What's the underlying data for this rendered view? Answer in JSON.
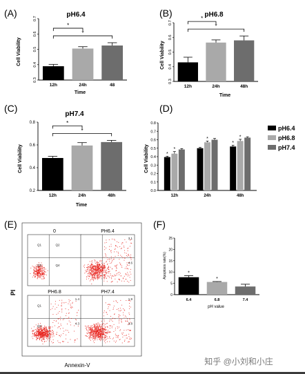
{
  "panels": {
    "A": {
      "letter": "(A)",
      "title": "pH6.4",
      "ylabel": "Cell Viability",
      "xlabel": "Time"
    },
    "B": {
      "letter": "(B)",
      "title": "pH6.8",
      "ylabel": "Cell Viability",
      "xlabel": "Time"
    },
    "C": {
      "letter": "(C)",
      "title": "pH7.4",
      "ylabel": "Cell Viability",
      "xlabel": "Time"
    },
    "D": {
      "letter": "(D)",
      "ylabel": "Cell Viability"
    },
    "E": {
      "letter": "(E)",
      "ylabel": "PI",
      "xlabel": "Annexin-V",
      "plots": [
        {
          "title": "0",
          "q1": "Q1",
          "q2": "Q2",
          "q3": "Q3",
          "q4": "Q4",
          "ur": "",
          "lr": ""
        },
        {
          "title": "PH6.4",
          "q1": "",
          "q2": "",
          "q3": "",
          "q4": "",
          "ur": "3.1",
          "lr": "4.6"
        },
        {
          "title": "PH6.8",
          "q1": "Q1",
          "q2": "",
          "q3": "Q3",
          "q4": "",
          "ur": "1.4",
          "lr": "4.3"
        },
        {
          "title": "PH7.4",
          "q1": "",
          "q2": "",
          "q3": "",
          "q4": "",
          "ur": "1.9",
          "lr": "3.8"
        }
      ]
    },
    "F": {
      "letter": "(F)",
      "ylabel": "Apoptosis rate(%)",
      "xlabel": "pH value"
    }
  },
  "watermark": "知乎 @小刘和小庄",
  "colors": {
    "black": "#000000",
    "gray_light": "#a9a9a9",
    "gray_dark": "#6d6d6d",
    "flow_red": "#e8251f"
  },
  "chart_data": [
    {
      "id": "A",
      "type": "bar",
      "title": "pH6.4",
      "xlabel": "Time",
      "ylabel": "Cell Viability",
      "categories": [
        "12h",
        "24h",
        "48"
      ],
      "values": [
        0.39,
        0.505,
        0.525
      ],
      "errors": [
        0.012,
        0.012,
        0.018
      ],
      "colors": [
        "#000000",
        "#a9a9a9",
        "#6d6d6d"
      ],
      "ylim": [
        0.3,
        0.7
      ],
      "yticks": [
        "0.3",
        "0.4",
        "0.5",
        "0.6",
        "0.7"
      ],
      "significance": [
        {
          "from": 0,
          "to": 1,
          "label": "*"
        },
        {
          "from": 0,
          "to": 2,
          "label": "*"
        }
      ]
    },
    {
      "id": "B",
      "type": "bar",
      "title": "pH6.8",
      "xlabel": "Time",
      "ylabel": "Cell Viability",
      "categories": [
        "12h",
        "24h",
        "48h"
      ],
      "values": [
        0.43,
        0.565,
        0.58
      ],
      "errors": [
        0.035,
        0.018,
        0.03
      ],
      "colors": [
        "#000000",
        "#a9a9a9",
        "#6d6d6d"
      ],
      "ylim": [
        0.3,
        0.7
      ],
      "yticks": [
        "0.3",
        "0.4",
        "0.5",
        "0.6",
        "0.7"
      ],
      "significance": [
        {
          "from": 0,
          "to": 1,
          "label": "*"
        },
        {
          "from": 0,
          "to": 2,
          "label": "*"
        }
      ]
    },
    {
      "id": "C",
      "type": "bar",
      "title": "pH7.4",
      "xlabel": "Time",
      "ylabel": "Cell Viability",
      "categories": [
        "12h",
        "24h",
        "48h"
      ],
      "values": [
        0.485,
        0.595,
        0.625
      ],
      "errors": [
        0.015,
        0.025,
        0.015
      ],
      "colors": [
        "#000000",
        "#a9a9a9",
        "#6d6d6d"
      ],
      "ylim": [
        0.2,
        0.8
      ],
      "yticks": [
        "0.2",
        "0.4",
        "0.6",
        "0.8"
      ],
      "significance": [
        {
          "from": 0,
          "to": 1,
          "label": "*"
        },
        {
          "from": 0,
          "to": 2,
          "label": "*"
        }
      ]
    },
    {
      "id": "D",
      "type": "bar",
      "ylabel": "Cell Viability",
      "categories": [
        "12h",
        "24h",
        "48h"
      ],
      "ylim": [
        0.0,
        0.8
      ],
      "yticks": [
        "0.0",
        "0.1",
        "0.2",
        "0.3",
        "0.4",
        "0.5",
        "0.6",
        "0.7",
        "0.8"
      ],
      "series": [
        {
          "name": "pH6.4",
          "color": "#000000",
          "values": [
            0.395,
            0.5,
            0.52
          ],
          "errors": [
            0.01,
            0.01,
            0.015
          ],
          "stars": [
            "*",
            "",
            "*"
          ]
        },
        {
          "name": "pH6.8",
          "color": "#a9a9a9",
          "values": [
            0.435,
            0.57,
            0.585
          ],
          "errors": [
            0.025,
            0.015,
            0.02
          ],
          "stars": [
            "*",
            "*",
            "*"
          ]
        },
        {
          "name": "pH7.4",
          "color": "#6d6d6d",
          "values": [
            0.485,
            0.6,
            0.625
          ],
          "errors": [
            0.01,
            0.015,
            0.01
          ],
          "stars": [
            "",
            "",
            ""
          ]
        }
      ]
    },
    {
      "id": "F",
      "type": "bar",
      "xlabel": "pH value",
      "ylabel": "Apoptosis rate(%)",
      "categories": [
        "6.4",
        "6.8",
        "7.4"
      ],
      "values": [
        7.7,
        5.6,
        3.6
      ],
      "errors": [
        0.7,
        0.2,
        1.0
      ],
      "colors": [
        "#000000",
        "#a9a9a9",
        "#6d6d6d"
      ],
      "ylim": [
        0,
        25
      ],
      "yticks": [
        "0",
        "5",
        "10",
        "15",
        "20",
        "25"
      ],
      "stars": [
        "*",
        "*",
        ""
      ]
    }
  ]
}
